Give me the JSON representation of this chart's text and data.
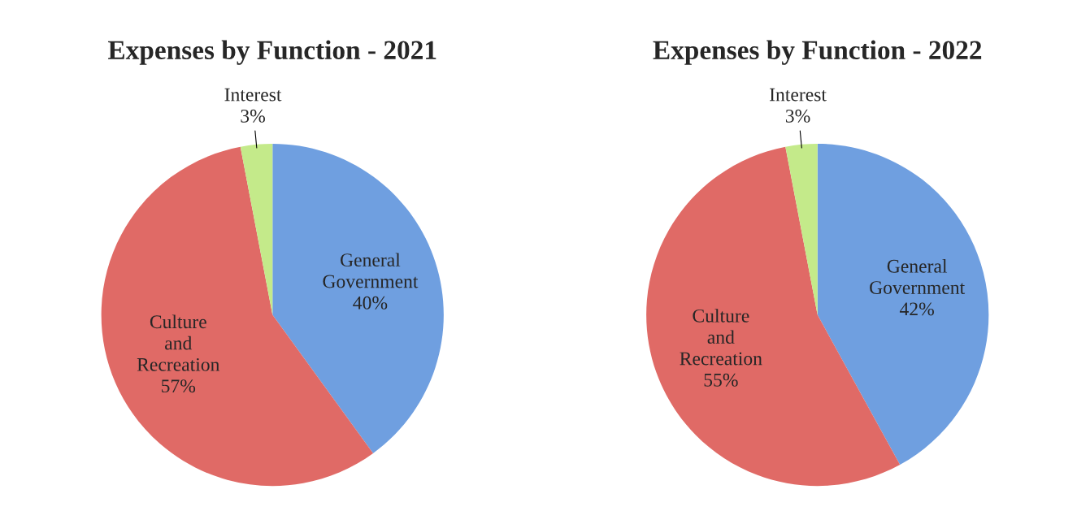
{
  "chart_data": [
    {
      "type": "pie",
      "title": "Expenses by Function - 2021",
      "categories": [
        "General Government",
        "Culture and Recreation",
        "Interest"
      ],
      "values": [
        40,
        57,
        3
      ],
      "colors": [
        "#6f9fe0",
        "#e06a66",
        "#c4ea8a"
      ],
      "value_labels": [
        "40%",
        "57%",
        "3%"
      ],
      "legend": false
    },
    {
      "type": "pie",
      "title": "Expenses by Function - 2022",
      "categories": [
        "General Government",
        "Culture and Recreation",
        "Interest"
      ],
      "values": [
        42,
        55,
        3
      ],
      "colors": [
        "#6f9fe0",
        "#e06a66",
        "#c4ea8a"
      ],
      "value_labels": [
        "42%",
        "55%",
        "3%"
      ],
      "legend": false
    }
  ]
}
